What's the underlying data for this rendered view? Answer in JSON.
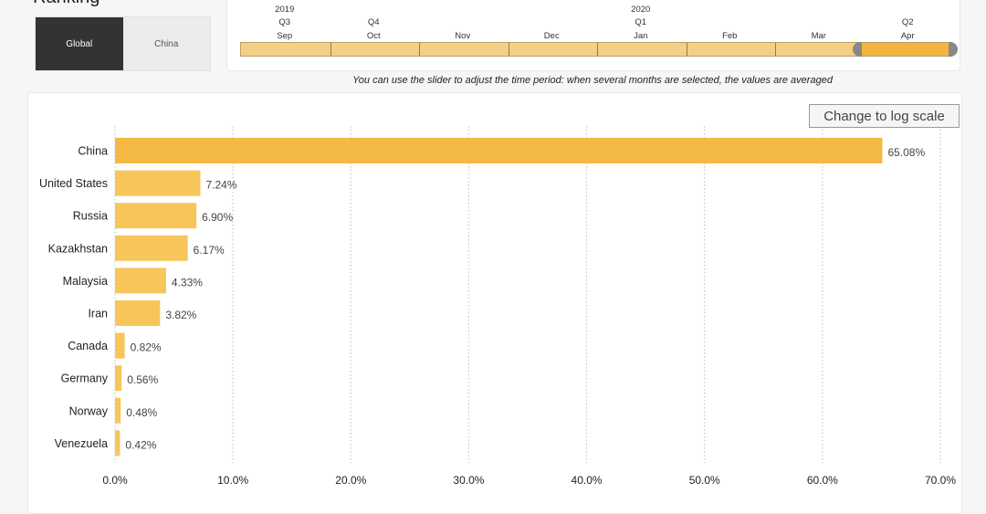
{
  "page_title": "Ranking",
  "toggle": {
    "options": [
      "Global",
      "China"
    ],
    "active": "Global"
  },
  "timeline": {
    "years": [
      {
        "label": "2019",
        "at": 0
      },
      {
        "label": "2020",
        "at": 4
      }
    ],
    "quarters": [
      {
        "label": "Q3",
        "at": 0
      },
      {
        "label": "Q4",
        "at": 1
      },
      {
        "label": "Q1",
        "at": 4
      },
      {
        "label": "Q2",
        "at": 7
      }
    ],
    "months": [
      "Sep",
      "Oct",
      "Nov",
      "Dec",
      "Jan",
      "Feb",
      "Mar",
      "Apr"
    ],
    "selected": [
      "Apr"
    ]
  },
  "hint": "You can use the slider to adjust the time period: when several months are selected, the values are averaged",
  "log_button": "Change to log scale",
  "chart_data": {
    "type": "bar",
    "orientation": "horizontal",
    "categories": [
      "China",
      "United States",
      "Russia",
      "Kazakhstan",
      "Malaysia",
      "Iran",
      "Canada",
      "Germany",
      "Norway",
      "Venezuela"
    ],
    "values": [
      65.08,
      7.24,
      6.9,
      6.17,
      4.33,
      3.82,
      0.82,
      0.56,
      0.48,
      0.42
    ],
    "value_labels": [
      "65.08%",
      "7.24%",
      "6.90%",
      "6.17%",
      "4.33%",
      "3.82%",
      "0.82%",
      "0.56%",
      "0.48%",
      "0.42%"
    ],
    "xlim": [
      0,
      70
    ],
    "ticks": [
      0,
      10,
      20,
      30,
      40,
      50,
      60,
      70
    ],
    "tick_labels": [
      "0.0%",
      "10.0%",
      "20.0%",
      "30.0%",
      "40.0%",
      "50.0%",
      "60.0%",
      "70.0%"
    ],
    "grid": true,
    "colors": {
      "top": "#f4b942",
      "bar": "#f6c65a"
    }
  }
}
